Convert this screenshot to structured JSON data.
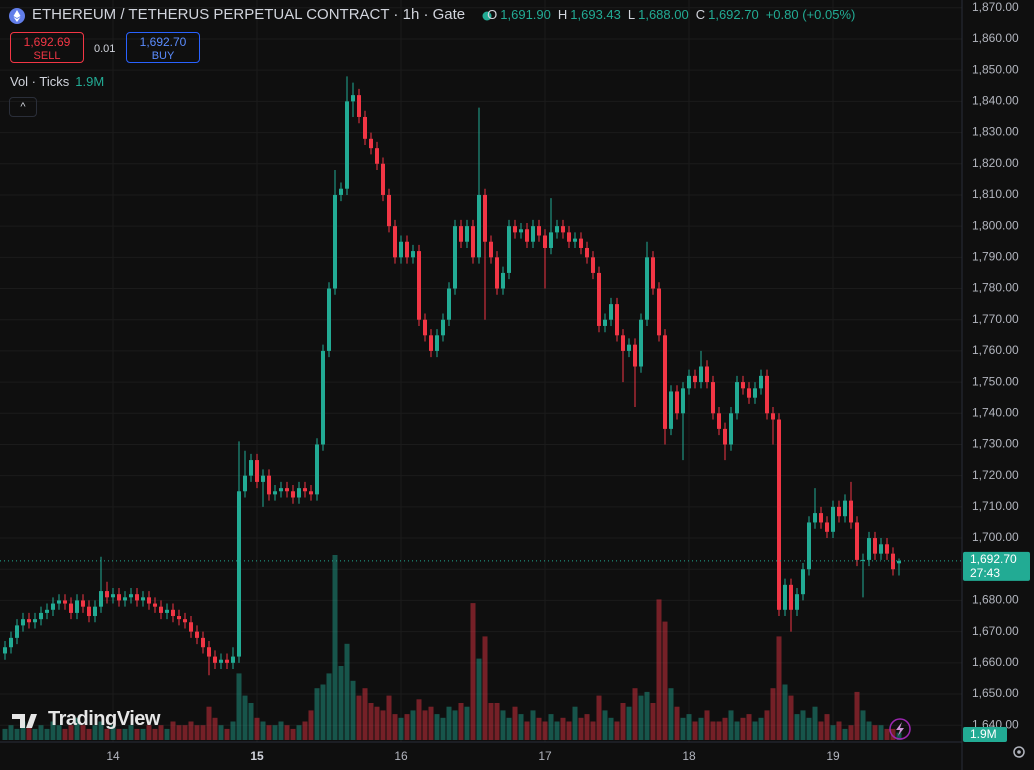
{
  "header": {
    "title": "ETHEREUM / TETHERUS PERPETUAL CONTRACT · 1h · Gate",
    "o_label": "O",
    "o": "1,691.90",
    "h_label": "H",
    "h": "1,693.43",
    "l_label": "L",
    "l": "1,688.00",
    "c_label": "C",
    "c": "1,692.70",
    "change": "+0.80 (+0.05%)"
  },
  "trade": {
    "sell_price": "1,692.69",
    "sell": "SELL",
    "quantity": "0.01",
    "buy_price": "1,692.70",
    "buy": "BUY"
  },
  "indicator": {
    "name": "Vol · Ticks",
    "value": "1.9M"
  },
  "branding": "TradingView",
  "chart_data": {
    "type": "candlestick",
    "colors": {
      "up": "#22ab94",
      "down": "#f23645"
    },
    "categories": [
      null,
      null,
      null,
      null,
      null,
      null,
      null,
      null,
      null,
      null,
      null,
      null,
      null,
      null,
      null,
      null,
      null,
      null,
      null,
      null,
      null,
      null,
      null,
      null,
      null,
      null,
      null,
      null,
      null,
      null,
      null,
      null,
      null,
      null,
      null,
      null,
      null,
      null,
      null,
      null,
      null,
      null,
      null,
      null,
      null,
      null,
      null,
      null,
      null,
      null,
      null,
      null,
      null,
      null,
      null,
      null,
      null,
      null,
      null,
      null,
      null,
      null,
      null,
      null,
      null,
      null,
      null,
      null,
      null,
      null,
      null,
      null,
      null,
      null,
      null,
      null,
      null,
      null,
      null,
      null,
      null,
      null,
      null,
      null,
      null,
      null,
      null,
      null,
      null,
      null,
      null,
      null,
      null,
      null,
      null,
      null,
      null,
      null,
      null,
      null,
      null,
      null,
      null,
      null,
      null,
      null,
      null,
      null,
      null,
      null,
      null,
      null,
      null,
      null,
      null,
      null,
      null,
      null,
      null,
      null,
      null,
      null,
      null,
      null,
      null,
      null,
      null,
      null,
      null,
      null,
      null,
      null,
      null,
      null,
      null,
      null,
      null,
      null,
      null,
      null,
      null,
      null,
      null,
      null,
      null,
      null,
      null,
      null,
      null,
      null
    ],
    "open": [
      1663,
      1665,
      1668,
      1672,
      1674,
      1673,
      1674,
      1676,
      1677,
      1679,
      1680,
      1679,
      1676,
      1680,
      1678,
      1675,
      1678,
      1683,
      1681,
      1682,
      1680,
      1681,
      1682,
      1680,
      1681,
      1679,
      1678,
      1676,
      1677,
      1675,
      1674,
      1673,
      1670,
      1668,
      1665,
      1662,
      1660,
      1661,
      1660,
      1662,
      1715,
      1720,
      1725,
      1718,
      1720,
      1714,
      1715,
      1716,
      1715,
      1713,
      1716,
      1715,
      1714,
      1730,
      1760,
      1780,
      1810,
      1812,
      1840,
      1842,
      1835,
      1828,
      1825,
      1820,
      1810,
      1800,
      1790,
      1795,
      1790,
      1792,
      1770,
      1765,
      1760,
      1765,
      1770,
      1780,
      1800,
      1795,
      1800,
      1790,
      1810,
      1795,
      1790,
      1780,
      1785,
      1800,
      1798,
      1799,
      1795,
      1800,
      1797,
      1793,
      1798,
      1800,
      1798,
      1795,
      1796,
      1793,
      1790,
      1785,
      1768,
      1770,
      1775,
      1765,
      1760,
      1762,
      1755,
      1770,
      1790,
      1780,
      1765,
      1735,
      1747,
      1740,
      1748,
      1752,
      1750,
      1755,
      1750,
      1740,
      1735,
      1730,
      1740,
      1750,
      1748,
      1745,
      1748,
      1752,
      1740,
      1738,
      1677,
      1685,
      1677,
      1682,
      1690,
      1705,
      1708,
      1705,
      1702,
      1710,
      1707,
      1712,
      1705,
      1693,
      1693,
      1700,
      1695,
      1698,
      1695,
      1691.9
    ],
    "high": [
      1667,
      1670,
      1674,
      1676,
      1676,
      1676,
      1678,
      1679,
      1681,
      1682,
      1682,
      1681,
      1682,
      1682,
      1680,
      1680,
      1694,
      1686,
      1684,
      1684,
      1683,
      1684,
      1684,
      1683,
      1683,
      1681,
      1680,
      1679,
      1679,
      1677,
      1676,
      1675,
      1672,
      1670,
      1667,
      1664,
      1663,
      1663,
      1665,
      1731,
      1728,
      1727,
      1727,
      1722,
      1722,
      1717,
      1718,
      1718,
      1717,
      1718,
      1718,
      1717,
      1732,
      1762,
      1782,
      1818,
      1814,
      1848,
      1846,
      1844,
      1837,
      1830,
      1827,
      1822,
      1812,
      1802,
      1797,
      1797,
      1794,
      1794,
      1772,
      1767,
      1767,
      1772,
      1782,
      1802,
      1802,
      1802,
      1802,
      1838,
      1812,
      1797,
      1792,
      1787,
      1802,
      1802,
      1801,
      1801,
      1802,
      1802,
      1799,
      1809,
      1802,
      1802,
      1800,
      1798,
      1798,
      1795,
      1792,
      1787,
      1772,
      1777,
      1777,
      1767,
      1764,
      1764,
      1772,
      1795,
      1792,
      1782,
      1767,
      1749,
      1749,
      1750,
      1754,
      1754,
      1760,
      1757,
      1752,
      1742,
      1737,
      1742,
      1752,
      1752,
      1750,
      1750,
      1754,
      1754,
      1742,
      1740,
      1687,
      1687,
      1684,
      1692,
      1707,
      1716,
      1710,
      1707,
      1712,
      1712,
      1714,
      1718,
      1707,
      1695,
      1702,
      1702,
      1700,
      1700,
      1697,
      1693.43
    ],
    "low": [
      1661,
      1663,
      1666,
      1670,
      1671,
      1671,
      1672,
      1674,
      1675,
      1677,
      1677,
      1674,
      1674,
      1676,
      1673,
      1673,
      1676,
      1679,
      1679,
      1678,
      1678,
      1679,
      1678,
      1678,
      1677,
      1676,
      1674,
      1674,
      1673,
      1672,
      1671,
      1668,
      1666,
      1663,
      1656,
      1658,
      1658,
      1658,
      1658,
      1660,
      1713,
      1718,
      1716,
      1710,
      1712,
      1712,
      1713,
      1713,
      1711,
      1711,
      1713,
      1712,
      1712,
      1728,
      1758,
      1778,
      1808,
      1810,
      1835,
      1833,
      1826,
      1823,
      1818,
      1808,
      1798,
      1788,
      1788,
      1788,
      1788,
      1768,
      1763,
      1758,
      1758,
      1763,
      1768,
      1778,
      1793,
      1793,
      1788,
      1788,
      1770,
      1788,
      1778,
      1778,
      1783,
      1796,
      1796,
      1793,
      1793,
      1795,
      1780,
      1791,
      1796,
      1796,
      1793,
      1793,
      1791,
      1788,
      1783,
      1766,
      1766,
      1768,
      1763,
      1750,
      1758,
      1742,
      1753,
      1768,
      1778,
      1763,
      1730,
      1733,
      1738,
      1725,
      1746,
      1748,
      1748,
      1748,
      1738,
      1733,
      1725,
      1728,
      1738,
      1746,
      1743,
      1743,
      1746,
      1738,
      1730,
      1675,
      1675,
      1670,
      1675,
      1680,
      1688,
      1703,
      1703,
      1700,
      1700,
      1705,
      1705,
      1703,
      1691,
      1681,
      1691,
      1693,
      1693,
      1693,
      1688,
      1688
    ],
    "close": [
      1665,
      1668,
      1672,
      1674,
      1673,
      1674,
      1676,
      1677,
      1679,
      1680,
      1679,
      1676,
      1680,
      1678,
      1675,
      1678,
      1683,
      1681,
      1682,
      1680,
      1681,
      1682,
      1680,
      1681,
      1679,
      1678,
      1676,
      1677,
      1675,
      1674,
      1673,
      1670,
      1668,
      1665,
      1662,
      1660,
      1661,
      1660,
      1662,
      1715,
      1720,
      1725,
      1718,
      1720,
      1714,
      1715,
      1716,
      1715,
      1713,
      1716,
      1715,
      1714,
      1730,
      1760,
      1780,
      1810,
      1812,
      1840,
      1842,
      1835,
      1828,
      1825,
      1820,
      1810,
      1800,
      1790,
      1795,
      1790,
      1792,
      1770,
      1765,
      1760,
      1765,
      1770,
      1780,
      1800,
      1795,
      1800,
      1790,
      1810,
      1795,
      1790,
      1780,
      1785,
      1800,
      1798,
      1799,
      1795,
      1800,
      1797,
      1793,
      1798,
      1800,
      1798,
      1795,
      1796,
      1793,
      1790,
      1785,
      1768,
      1770,
      1775,
      1765,
      1760,
      1762,
      1755,
      1770,
      1790,
      1780,
      1765,
      1735,
      1747,
      1740,
      1748,
      1752,
      1750,
      1755,
      1750,
      1740,
      1735,
      1730,
      1740,
      1750,
      1748,
      1745,
      1748,
      1752,
      1740,
      1738,
      1677,
      1685,
      1677,
      1682,
      1690,
      1705,
      1708,
      1705,
      1702,
      1710,
      1707,
      1712,
      1705,
      1693,
      1693,
      1700,
      1695,
      1698,
      1695,
      1690,
      1692.7
    ],
    "volume": [
      3,
      4,
      3,
      5,
      4,
      3,
      4,
      3,
      5,
      4,
      3,
      4,
      6,
      4,
      3,
      4,
      5,
      3,
      4,
      3,
      3,
      4,
      3,
      3,
      4,
      3,
      4,
      3,
      5,
      4,
      4,
      5,
      4,
      4,
      9,
      6,
      4,
      3,
      5,
      18,
      12,
      10,
      6,
      5,
      4,
      4,
      5,
      4,
      3,
      4,
      5,
      8,
      14,
      15,
      18,
      50,
      20,
      26,
      16,
      12,
      14,
      10,
      9,
      8,
      12,
      7,
      6,
      7,
      8,
      11,
      8,
      9,
      7,
      6,
      9,
      8,
      10,
      9,
      37,
      22,
      28,
      10,
      10,
      8,
      6,
      9,
      7,
      5,
      8,
      6,
      5,
      7,
      5,
      6,
      5,
      9,
      6,
      7,
      5,
      12,
      8,
      6,
      5,
      10,
      9,
      14,
      12,
      13,
      10,
      38,
      32,
      14,
      9,
      6,
      7,
      5,
      6,
      8,
      5,
      5,
      6,
      8,
      5,
      6,
      7,
      5,
      6,
      8,
      14,
      28,
      15,
      12,
      7,
      8,
      6,
      9,
      5,
      7,
      4,
      5,
      3,
      4,
      13,
      8,
      5,
      4,
      4,
      3,
      3,
      2
    ],
    "ylim": [
      1637.5,
      1872.5
    ],
    "yticks": [
      {
        "value": 1640,
        "label": "1,640.00"
      },
      {
        "value": 1650,
        "label": "1,650.00"
      },
      {
        "value": 1660,
        "label": "1,660.00"
      },
      {
        "value": 1670,
        "label": "1,670.00"
      },
      {
        "value": 1680,
        "label": "1,680.00"
      },
      {
        "value": 1690,
        "label": "1,690.00"
      },
      {
        "value": 1700,
        "label": "1,700.00"
      },
      {
        "value": 1710,
        "label": "1,710.00"
      },
      {
        "value": 1720,
        "label": "1,720.00"
      },
      {
        "value": 1730,
        "label": "1,730.00"
      },
      {
        "value": 1740,
        "label": "1,740.00"
      },
      {
        "value": 1750,
        "label": "1,750.00"
      },
      {
        "value": 1760,
        "label": "1,760.00"
      },
      {
        "value": 1770,
        "label": "1,770.00"
      },
      {
        "value": 1780,
        "label": "1,780.00"
      },
      {
        "value": 1790,
        "label": "1,790.00"
      },
      {
        "value": 1800,
        "label": "1,800.00"
      },
      {
        "value": 1810,
        "label": "1,810.00"
      },
      {
        "value": 1820,
        "label": "1,820.00"
      },
      {
        "value": 1830,
        "label": "1,830.00"
      },
      {
        "value": 1840,
        "label": "1,840.00"
      },
      {
        "value": 1850,
        "label": "1,850.00"
      },
      {
        "value": 1860,
        "label": "1,860.00"
      },
      {
        "value": 1870,
        "label": "1,870.00"
      }
    ],
    "xticks": [
      {
        "value": 18,
        "label": "14"
      },
      {
        "value": 42,
        "label": "15"
      },
      {
        "value": 66,
        "label": "16"
      },
      {
        "value": 90,
        "label": "17"
      },
      {
        "value": 114,
        "label": "18"
      },
      {
        "value": 138,
        "label": "19"
      }
    ],
    "last_price": {
      "value": 1692.7,
      "label": "1,692.70",
      "countdown": "27:43"
    },
    "grid": true
  }
}
